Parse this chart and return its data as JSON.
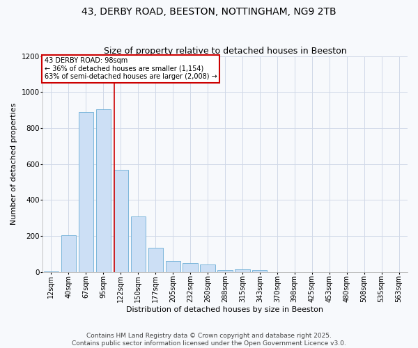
{
  "title": "43, DERBY ROAD, BEESTON, NOTTINGHAM, NG9 2TB",
  "subtitle": "Size of property relative to detached houses in Beeston",
  "xlabel": "Distribution of detached houses by size in Beeston",
  "ylabel": "Number of detached properties",
  "bar_labels": [
    "12sqm",
    "40sqm",
    "67sqm",
    "95sqm",
    "122sqm",
    "150sqm",
    "177sqm",
    "205sqm",
    "232sqm",
    "260sqm",
    "288sqm",
    "315sqm",
    "343sqm",
    "370sqm",
    "398sqm",
    "425sqm",
    "453sqm",
    "480sqm",
    "508sqm",
    "535sqm",
    "563sqm"
  ],
  "bar_values": [
    5,
    205,
    890,
    905,
    570,
    310,
    135,
    62,
    48,
    42,
    12,
    17,
    10,
    1,
    1,
    1,
    0,
    0,
    0,
    0,
    1
  ],
  "bar_color": "#ccdff5",
  "bar_edge_color": "#6baed6",
  "background_color": "#f7f9fc",
  "plot_bg_color": "#f7f9fc",
  "grid_color": "#d0d8e8",
  "property_label": "43 DERBY ROAD: 98sqm",
  "annotation_line1": "← 36% of detached houses are smaller (1,154)",
  "annotation_line2": "63% of semi-detached houses are larger (2,008) →",
  "annotation_box_color": "#ffffff",
  "annotation_box_edge_color": "#cc0000",
  "vline_color": "#cc0000",
  "vline_x": 3.62,
  "ylim": [
    0,
    1200
  ],
  "yticks": [
    0,
    200,
    400,
    600,
    800,
    1000,
    1200
  ],
  "footer1": "Contains HM Land Registry data © Crown copyright and database right 2025.",
  "footer2": "Contains public sector information licensed under the Open Government Licence v3.0.",
  "title_fontsize": 10,
  "subtitle_fontsize": 9,
  "axis_label_fontsize": 8,
  "tick_fontsize": 7,
  "annotation_fontsize": 7,
  "footer_fontsize": 6.5
}
